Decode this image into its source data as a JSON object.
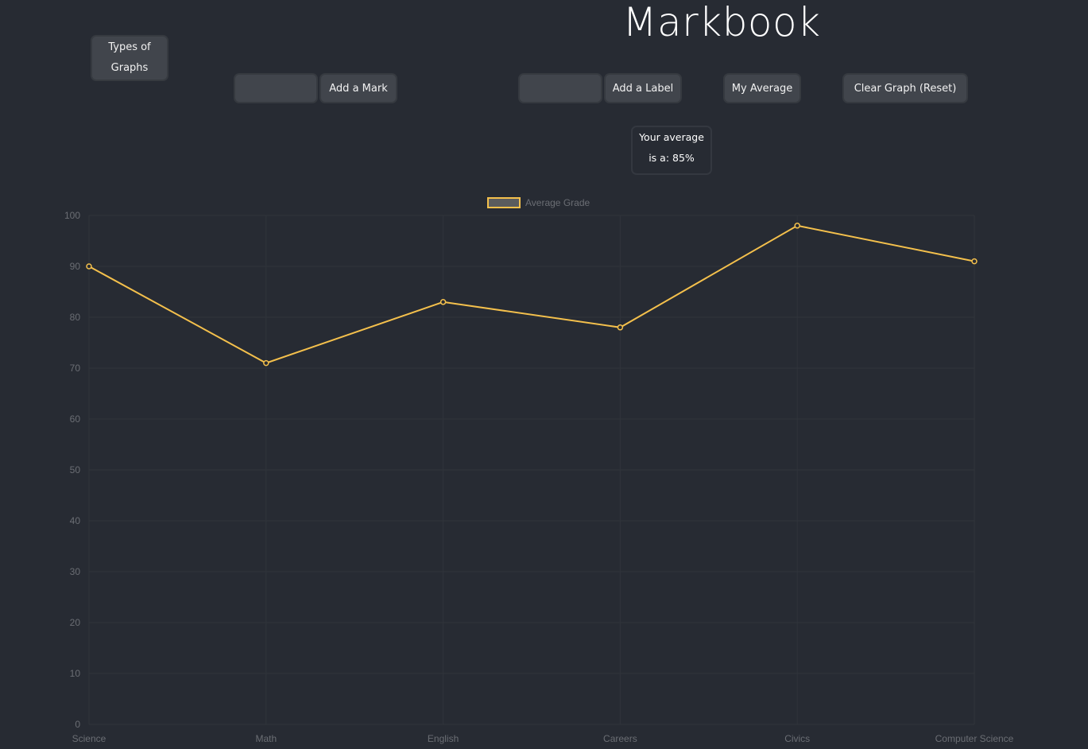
{
  "header": {
    "title": "Markbook"
  },
  "toolbar": {
    "types_label": "Types of Graphs",
    "mark_input_value": "",
    "add_mark_label": "Add a Mark",
    "label_input_value": "",
    "add_label_label": "Add a Label",
    "my_average_label": "My Average",
    "clear_label": "Clear Graph (Reset)"
  },
  "average_box": {
    "text": "Your average is a: 85%"
  },
  "colors": {
    "background": "#272b33",
    "button": "#41454c",
    "line": "#f4c04c",
    "grid": "#30343b",
    "axis_text": "#6b6e74"
  },
  "chart_data": {
    "type": "line",
    "categories": [
      "Science",
      "Math",
      "English",
      "Careers",
      "Civics",
      "Computer Science"
    ],
    "series": [
      {
        "name": "Average Grade",
        "values": [
          90,
          71,
          83,
          78,
          98,
          91
        ]
      }
    ],
    "ylim": [
      0,
      100
    ],
    "yticks": [
      0,
      10,
      20,
      30,
      40,
      50,
      60,
      70,
      80,
      90,
      100
    ],
    "legend": "top-center",
    "grid": true
  }
}
